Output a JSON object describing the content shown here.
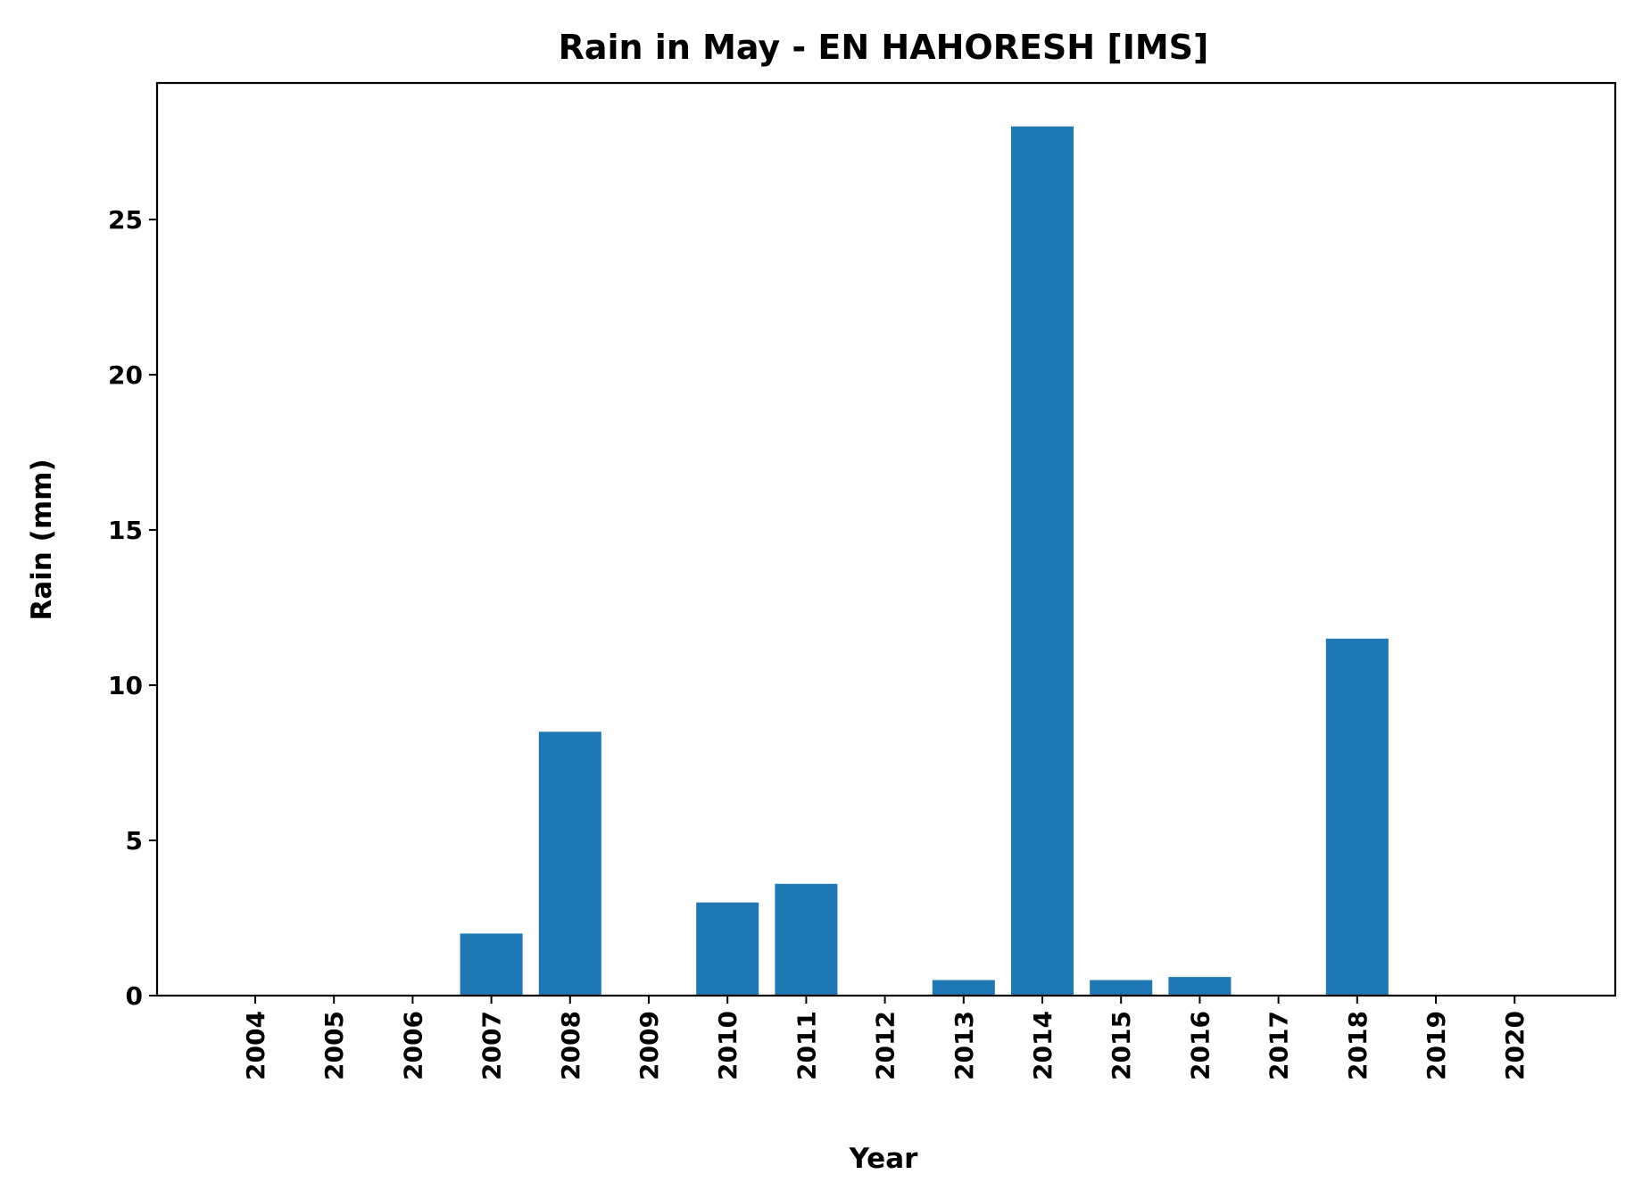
{
  "chart_data": {
    "type": "bar",
    "title": "Rain in May - EN HAHORESH [IMS]",
    "xlabel": "Year",
    "ylabel": "Rain (mm)",
    "categories": [
      "2004",
      "2005",
      "2006",
      "2007",
      "2008",
      "2009",
      "2010",
      "2011",
      "2012",
      "2013",
      "2014",
      "2015",
      "2016",
      "2017",
      "2018",
      "2019",
      "2020"
    ],
    "values": [
      0,
      0,
      0,
      2.0,
      8.5,
      0,
      3.0,
      3.6,
      0,
      0.5,
      28.0,
      0.5,
      0.6,
      0,
      11.5,
      0,
      0
    ],
    "ylim": [
      0,
      29.4
    ],
    "yticks": [
      0,
      5,
      10,
      15,
      20,
      25
    ],
    "grid": false,
    "legend": "none",
    "bar_color": "#1f77b4"
  }
}
